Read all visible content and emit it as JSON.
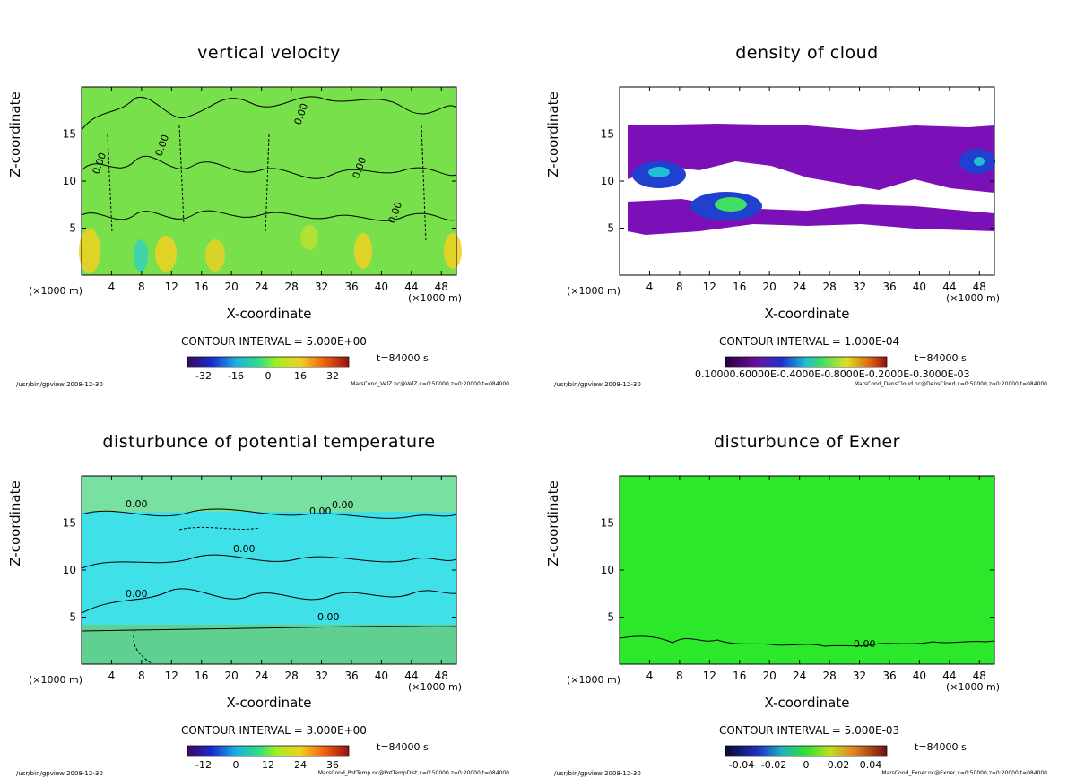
{
  "chart_data": [
    {
      "type": "heatmap",
      "title": "vertical velocity",
      "xlabel": "X-coordinate",
      "ylabel": "Z-coordinate",
      "x_unit_label": "(×1000 m)",
      "xlim": [
        0,
        50
      ],
      "ylim": [
        0,
        20
      ],
      "x_ticks": [
        4,
        8,
        12,
        16,
        20,
        24,
        28,
        32,
        36,
        40,
        44,
        48
      ],
      "y_ticks": [
        5,
        10,
        15
      ],
      "contour_interval": "CONTOUR INTERVAL = 5.000E+00",
      "time": "t=84000 s",
      "colorbar_ticks": [
        "-32",
        "-16",
        "0",
        "16",
        "32"
      ],
      "colorbar_range": [
        -40,
        40
      ],
      "contour_labels": [
        "0.00",
        "0.00",
        "0.00",
        "0.00",
        "0.00"
      ],
      "footer_left": "/usr/bin/gpview  2008-12-30",
      "footer_right": "MarsCond_VelZ.nc@VelZ,x=0:50000,z=0:20000,t=084000"
    },
    {
      "type": "heatmap",
      "title": "density of cloud",
      "xlabel": "X-coordinate",
      "ylabel": "Z-coordinate",
      "x_unit_label": "(×1000 m)",
      "xlim": [
        0,
        50
      ],
      "ylim": [
        0,
        20
      ],
      "x_ticks": [
        4,
        8,
        12,
        16,
        20,
        24,
        28,
        32,
        36,
        40,
        44,
        48
      ],
      "y_ticks": [
        5,
        10,
        15
      ],
      "contour_interval": "CONTOUR INTERVAL = 1.000E-04",
      "time": "t=84000 s",
      "colorbar_ticks_text": "0.10000.60000E-0.4000E-0.8000E-0.2000E-0.3000E-03",
      "colorbar_range": [
        0,
        0.0032
      ],
      "footer_left": "/usr/bin/gpview  2008-12-30",
      "footer_right": "MarsCond_DensCloud.nc@DensCloud,x=0:50000,z=0:20000,t=084000"
    },
    {
      "type": "heatmap",
      "title": "disturbunce of potential temperature",
      "xlabel": "X-coordinate",
      "ylabel": "Z-coordinate",
      "x_unit_label": "(×1000 m)",
      "xlim": [
        0,
        50
      ],
      "ylim": [
        0,
        20
      ],
      "x_ticks": [
        4,
        8,
        12,
        16,
        20,
        24,
        28,
        32,
        36,
        40,
        44,
        48
      ],
      "y_ticks": [
        5,
        10,
        15
      ],
      "contour_interval": "CONTOUR INTERVAL = 3.000E+00",
      "time": "t=84000 s",
      "colorbar_ticks": [
        "-12",
        "0",
        "12",
        "24",
        "36"
      ],
      "colorbar_range": [
        -18,
        42
      ],
      "contour_labels": [
        "0.00",
        "0.00",
        "0.00",
        "0.00",
        "0.00",
        "0.00"
      ],
      "footer_left": "/usr/bin/gpview  2008-12-30",
      "footer_right": "MarsCond_PotTemp.nc@PotTempDist,x=0:50000,z=0:20000,t=084000"
    },
    {
      "type": "heatmap",
      "title": "disturbunce of Exner",
      "xlabel": "X-coordinate",
      "ylabel": "Z-coordinate",
      "x_unit_label": "(×1000 m)",
      "xlim": [
        0,
        50
      ],
      "ylim": [
        0,
        20
      ],
      "x_ticks": [
        4,
        8,
        12,
        16,
        20,
        24,
        28,
        32,
        36,
        40,
        44,
        48
      ],
      "y_ticks": [
        5,
        10,
        15
      ],
      "contour_interval": "CONTOUR INTERVAL = 5.000E-03",
      "time": "t=84000 s",
      "colorbar_ticks": [
        "-0.04",
        "-0.02",
        "0",
        "0.02",
        "0.04"
      ],
      "colorbar_range": [
        -0.05,
        0.05
      ],
      "contour_labels": [
        "0.00"
      ],
      "footer_left": "/usr/bin/gpview  2008-12-30",
      "footer_right": "MarsCond_Exner.nc@Exner,x=0:50000,z=0:20000,t=084000"
    }
  ]
}
